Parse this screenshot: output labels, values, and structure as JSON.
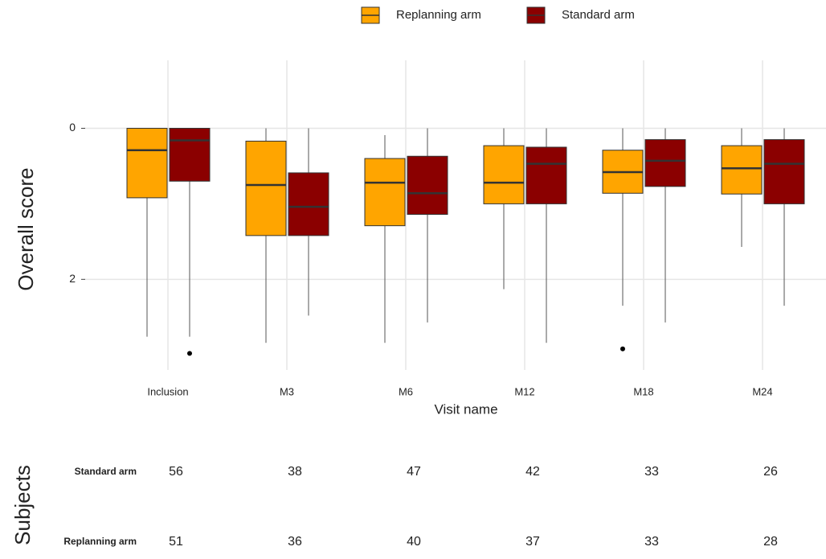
{
  "chart_data": {
    "type": "box",
    "categories": [
      "Inclusion",
      "M3",
      "M6",
      "M12",
      "M18",
      "M24"
    ],
    "x_label": "Visit name",
    "y_label": "Overall score",
    "ylim": [
      3.2,
      -0.9
    ],
    "yticks": [
      0,
      2
    ],
    "grid": true,
    "legend": "top",
    "series": [
      {
        "name": "Replanning arm",
        "color": "#ffa500",
        "min": [
          0,
          0,
          0.09,
          0,
          0,
          0
        ],
        "q1": [
          0,
          0.17,
          0.4,
          0.23,
          0.29,
          0.23
        ],
        "median": [
          0.29,
          0.75,
          0.72,
          0.72,
          0.58,
          0.53
        ],
        "q3": [
          0.92,
          1.42,
          1.29,
          1.0,
          0.86,
          0.87
        ],
        "max": [
          2.76,
          2.84,
          2.84,
          2.13,
          2.35,
          1.57
        ],
        "outliers": [
          [],
          [],
          [],
          [],
          [
            2.92
          ],
          []
        ]
      },
      {
        "name": "Standard arm",
        "color": "#8b0000",
        "min": [
          0,
          0,
          0,
          0,
          0,
          0
        ],
        "q1": [
          0,
          0.59,
          0.37,
          0.25,
          0.15,
          0.15
        ],
        "median": [
          0.16,
          1.04,
          0.86,
          0.47,
          0.43,
          0.47
        ],
        "q3": [
          0.7,
          1.42,
          1.14,
          1.0,
          0.77,
          1.0
        ],
        "max": [
          2.76,
          2.48,
          2.57,
          2.84,
          2.57,
          2.35
        ],
        "outliers": [
          [
            2.98
          ],
          [],
          [],
          [],
          [],
          []
        ]
      }
    ]
  },
  "table": {
    "title": "Subjects",
    "rows": [
      {
        "label": "Standard arm",
        "values": [
          56,
          38,
          47,
          42,
          33,
          26
        ]
      },
      {
        "label": "Replanning arm",
        "values": [
          51,
          36,
          40,
          37,
          33,
          28
        ]
      }
    ]
  }
}
